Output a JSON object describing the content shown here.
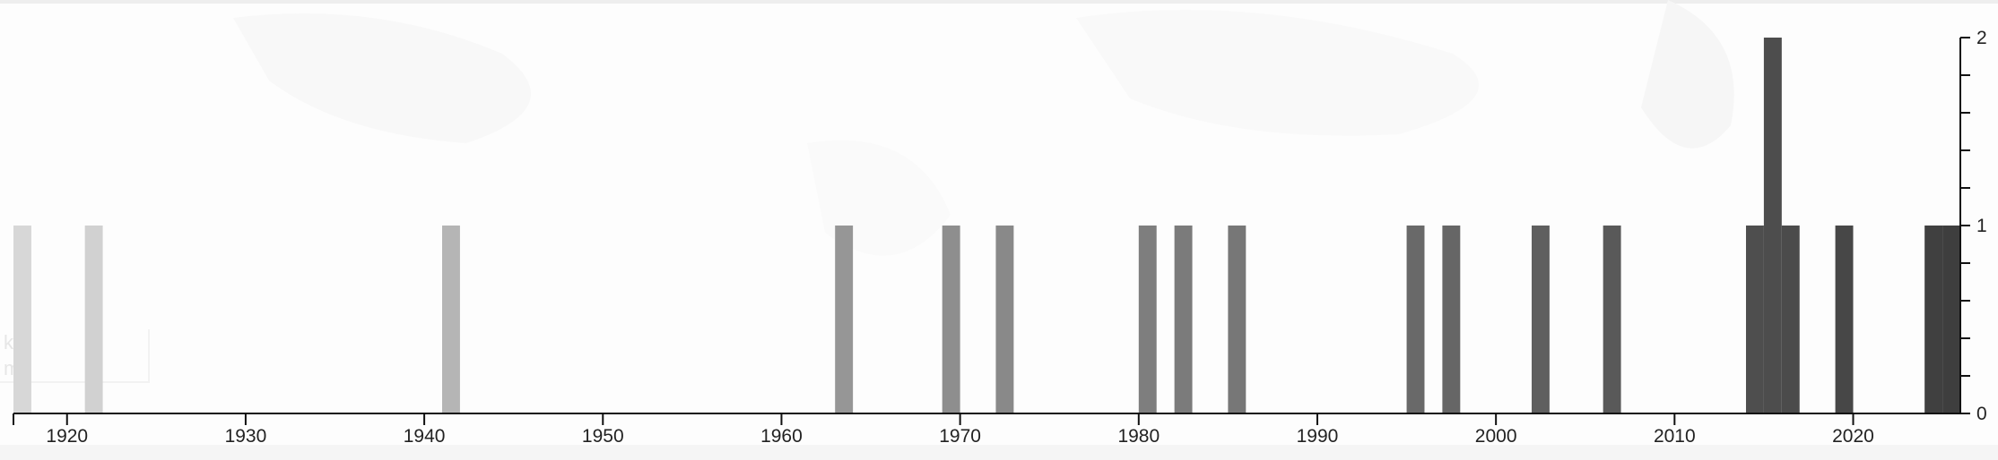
{
  "scale": {
    "km_label": "km",
    "mi_label": "mi"
  },
  "chart_data": {
    "type": "bar",
    "title": "",
    "xlabel": "",
    "ylabel": "",
    "x_ticks": [
      1920,
      1930,
      1940,
      1950,
      1960,
      1970,
      1980,
      1990,
      2000,
      2010,
      2020
    ],
    "y_ticks": [
      0,
      1,
      2
    ],
    "xlim": [
      1917,
      2026
    ],
    "ylim": [
      0,
      2
    ],
    "bar_width_years": 1,
    "color_range": [
      "#d7d7d7",
      "#3d3d3d"
    ],
    "x": [
      1917,
      1921,
      1941,
      1963,
      1969,
      1972,
      1980,
      1982,
      1985,
      1995,
      1997,
      2002,
      2006,
      2014,
      2015,
      2016,
      2019,
      2024,
      2025
    ],
    "values": [
      1,
      1,
      1,
      1,
      1,
      1,
      1,
      1,
      1,
      1,
      1,
      1,
      1,
      1,
      2,
      1,
      1,
      1,
      1
    ],
    "grid": false,
    "legend": "none"
  }
}
